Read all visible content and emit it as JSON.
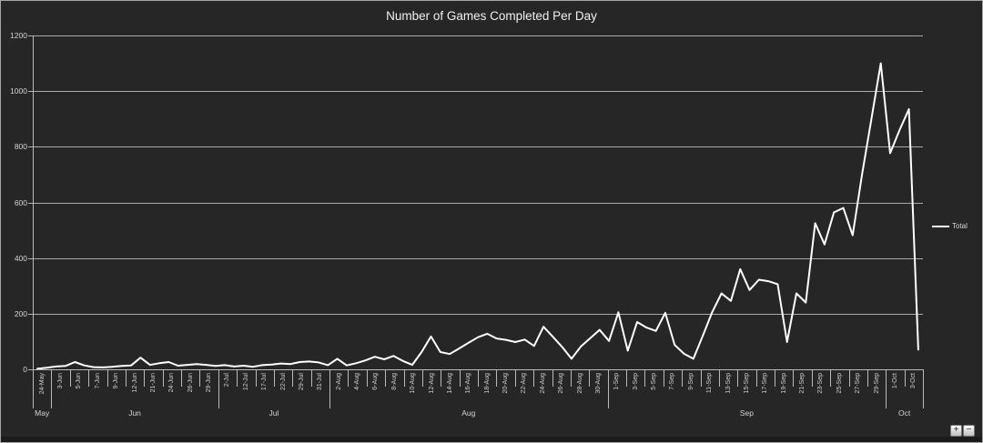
{
  "chart_data": {
    "type": "line",
    "title": "Number of Games Completed Per Day",
    "legend_position": "right",
    "grid": true,
    "ylim": [
      0,
      1200
    ],
    "yticks": [
      "0",
      "200",
      "400",
      "600",
      "800",
      "1000",
      "1200"
    ],
    "x_label_interval": 2,
    "x_labels": [
      "24-May",
      "3-Jun",
      "5-Jun",
      "7-Jun",
      "9-Jun",
      "12-Jun",
      "21-Jun",
      "24-Jun",
      "26-Jun",
      "29-Jun",
      "2-Jul",
      "12-Jul",
      "17-Jul",
      "22-Jul",
      "29-Jul",
      "31-Jul",
      "2-Aug",
      "4-Aug",
      "6-Aug",
      "8-Aug",
      "10-Aug",
      "12-Aug",
      "14-Aug",
      "16-Aug",
      "18-Aug",
      "20-Aug",
      "22-Aug",
      "24-Aug",
      "26-Aug",
      "28-Aug",
      "30-Aug",
      "1-Sep",
      "3-Sep",
      "5-Sep",
      "7-Sep",
      "9-Sep",
      "11-Sep",
      "13-Sep",
      "15-Sep",
      "17-Sep",
      "19-Sep",
      "21-Sep",
      "23-Sep",
      "25-Sep",
      "27-Sep",
      "29-Sep",
      "1-Oct",
      "3-Oct"
    ],
    "month_groups": [
      {
        "label": "May",
        "count": 1
      },
      {
        "label": "Jun",
        "count": 9
      },
      {
        "label": "Jul",
        "count": 6
      },
      {
        "label": "Aug",
        "count": 15
      },
      {
        "label": "Sep",
        "count": 15
      },
      {
        "label": "Oct",
        "count": 2
      }
    ],
    "series": [
      {
        "name": "Total",
        "values": [
          2,
          6,
          10,
          12,
          26,
          14,
          8,
          7,
          9,
          12,
          14,
          42,
          16,
          22,
          26,
          13,
          16,
          19,
          16,
          12,
          15,
          10,
          13,
          9,
          15,
          17,
          21,
          19,
          26,
          28,
          25,
          15,
          38,
          14,
          22,
          32,
          45,
          36,
          48,
          30,
          16,
          62,
          118,
          62,
          55,
          75,
          95,
          115,
          128,
          111,
          106,
          98,
          107,
          84,
          153,
          117,
          80,
          38,
          82,
          112,
          142,
          102,
          205,
          67,
          170,
          150,
          138,
          203,
          88,
          56,
          38,
          120,
          205,
          273,
          246,
          360,
          285,
          322,
          317,
          306,
          98,
          273,
          240,
          525,
          449,
          564,
          580,
          482,
          700,
          900,
          1100,
          777,
          860,
          935,
          71
        ]
      }
    ],
    "colors": {
      "background": "#262626",
      "line": "#ffffff",
      "gridline": "#a9a9a9",
      "axis": "#b9b9b9",
      "text": "#d4d4d4",
      "title": "#f0f0f0"
    }
  },
  "controls": {
    "zoom_in_label": "+",
    "zoom_out_label": "−"
  }
}
